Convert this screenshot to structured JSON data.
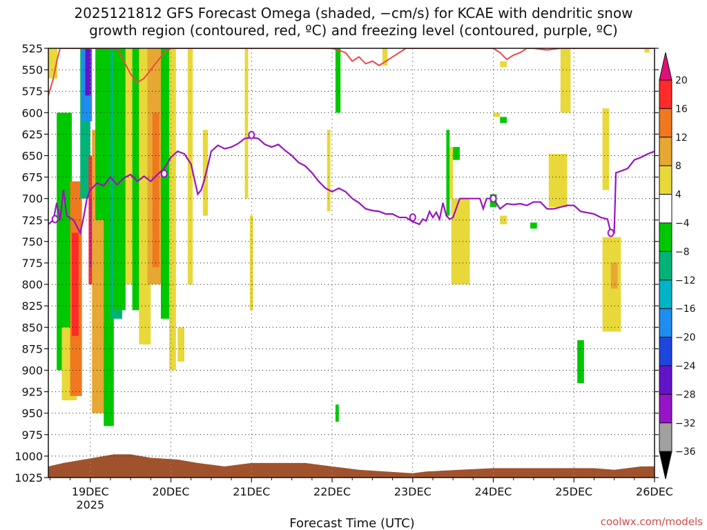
{
  "chart_data": {
    "type": "heatmap",
    "title_line1": "2025121812 GFS Forecast Omega (shaded, −cm/s) for KCAE with dendritic snow",
    "title_line2": "growth region (contoured, red, ºC) and freezing level (contoured, purple, ºC)",
    "xlabel": "Forecast Time (UTC)",
    "credit": "coolwx.com/models",
    "x_range_hours": [
      -12.5,
      168
    ],
    "y_levels": [
      "525",
      "550",
      "575",
      "600",
      "625",
      "650",
      "675",
      "700",
      "725",
      "750",
      "775",
      "800",
      "825",
      "850",
      "875",
      "900",
      "925",
      "950",
      "975",
      "1000",
      "1025"
    ],
    "x_ticks": [
      {
        "hour": 0,
        "label": "19DEC"
      },
      {
        "hour": 24,
        "label": "20DEC"
      },
      {
        "hour": 48,
        "label": "21DEC"
      },
      {
        "hour": 72,
        "label": "22DEC"
      },
      {
        "hour": 96,
        "label": "23DEC"
      },
      {
        "hour": 120,
        "label": "24DEC"
      },
      {
        "hour": 144,
        "label": "25DEC"
      },
      {
        "hour": 168,
        "label": "26DEC"
      }
    ],
    "x_year_label": "2025",
    "colorbar": {
      "labels": [
        "20",
        "16",
        "12",
        "8",
        "4",
        "−4",
        "−8",
        "−12",
        "−16",
        "−20",
        "−24",
        "−28",
        "−32",
        "−36"
      ],
      "colors": [
        "#e0107a",
        "#ff2a2a",
        "#f0781e",
        "#e6a832",
        "#e8d83a",
        "#ffffff",
        "#00c800",
        "#00b478",
        "#00b4c8",
        "#1e8cf0",
        "#1e46dc",
        "#6414c8",
        "#9614c8",
        "#a0a0a0",
        "#000000"
      ]
    },
    "shaded_regions": [
      {
        "t0": -12.5,
        "t1": -9.8,
        "p0": 525,
        "p1": 560,
        "color": "#e8d83a"
      },
      {
        "t0": -10.0,
        "t1": -5.5,
        "p0": 600,
        "p1": 900,
        "color": "#00c800"
      },
      {
        "t0": -8.5,
        "t1": -4.0,
        "p0": 850,
        "p1": 935,
        "color": "#e8d83a"
      },
      {
        "t0": -6.0,
        "t1": -2.5,
        "p0": 680,
        "p1": 930,
        "color": "#f0781e"
      },
      {
        "t0": -5.5,
        "t1": -3.5,
        "p0": 740,
        "p1": 860,
        "color": "#ff2a2a"
      },
      {
        "t0": -3.0,
        "t1": 0.0,
        "p0": 525,
        "p1": 700,
        "color": "#00b478"
      },
      {
        "t0": -2.5,
        "t1": 0.5,
        "p0": 525,
        "p1": 610,
        "color": "#1e8cf0"
      },
      {
        "t0": -1.5,
        "t1": 0.2,
        "p0": 525,
        "p1": 580,
        "color": "#6414c8"
      },
      {
        "t0": -0.5,
        "t1": 3.5,
        "p0": 650,
        "p1": 800,
        "color": "#ff2a2a"
      },
      {
        "t0": -0.3,
        "t1": 0.7,
        "p0": 700,
        "p1": 780,
        "color": "#e0107a"
      },
      {
        "t0": 0.5,
        "t1": 4.5,
        "p0": 620,
        "p1": 950,
        "color": "#e6a832"
      },
      {
        "t0": 4.0,
        "t1": 7.0,
        "p0": 700,
        "p1": 965,
        "color": "#00c800"
      },
      {
        "t0": 1.5,
        "t1": 6.0,
        "p0": 525,
        "p1": 725,
        "color": "#00c800"
      },
      {
        "t0": 6.0,
        "t1": 9.5,
        "p0": 525,
        "p1": 840,
        "color": "#00b478"
      },
      {
        "t0": 7.0,
        "t1": 10.5,
        "p0": 525,
        "p1": 830,
        "color": "#00c800"
      },
      {
        "t0": 10.5,
        "t1": 12.5,
        "p0": 525,
        "p1": 800,
        "color": "#e8d83a"
      },
      {
        "t0": 12.5,
        "t1": 15.0,
        "p0": 525,
        "p1": 830,
        "color": "#00c800"
      },
      {
        "t0": 14.5,
        "t1": 18.0,
        "p0": 525,
        "p1": 870,
        "color": "#e8d83a"
      },
      {
        "t0": 17.0,
        "t1": 21.0,
        "p0": 525,
        "p1": 800,
        "color": "#e6a832"
      },
      {
        "t0": 18.5,
        "t1": 20.5,
        "p0": 600,
        "p1": 780,
        "color": "#f0781e"
      },
      {
        "t0": 21.0,
        "t1": 24.0,
        "p0": 525,
        "p1": 840,
        "color": "#00c800"
      },
      {
        "t0": 23.5,
        "t1": 25.5,
        "p0": 525,
        "p1": 900,
        "color": "#e8d83a"
      },
      {
        "t0": 26.0,
        "t1": 28.0,
        "p0": 850,
        "p1": 890,
        "color": "#e8d83a"
      },
      {
        "t0": 29.0,
        "t1": 30.5,
        "p0": 525,
        "p1": 800,
        "color": "#e8d83a"
      },
      {
        "t0": 33.5,
        "t1": 35.0,
        "p0": 620,
        "p1": 720,
        "color": "#e8d83a"
      },
      {
        "t0": 46.0,
        "t1": 47.0,
        "p0": 525,
        "p1": 700,
        "color": "#e8d83a"
      },
      {
        "t0": 47.5,
        "t1": 48.5,
        "p0": 720,
        "p1": 830,
        "color": "#e8d83a"
      },
      {
        "t0": 70.5,
        "t1": 71.5,
        "p0": 620,
        "p1": 715,
        "color": "#e8d83a"
      },
      {
        "t0": 73.0,
        "t1": 74.5,
        "p0": 525,
        "p1": 600,
        "color": "#00c800"
      },
      {
        "t0": 73.0,
        "t1": 74.0,
        "p0": 940,
        "p1": 960,
        "color": "#00c800"
      },
      {
        "t0": 87.0,
        "t1": 88.5,
        "p0": 525,
        "p1": 545,
        "color": "#e8d83a"
      },
      {
        "t0": 106.0,
        "t1": 107.0,
        "p0": 620,
        "p1": 720,
        "color": "#00c800"
      },
      {
        "t0": 107.0,
        "t1": 108.0,
        "p0": 640,
        "p1": 700,
        "color": "#e8d83a"
      },
      {
        "t0": 108.0,
        "t1": 110.0,
        "p0": 640,
        "p1": 655,
        "color": "#00c800"
      },
      {
        "t0": 107.5,
        "t1": 113.0,
        "p0": 700,
        "p1": 800,
        "color": "#e8d83a"
      },
      {
        "t0": 120.0,
        "t1": 122.0,
        "p0": 600,
        "p1": 605,
        "color": "#e8d83a"
      },
      {
        "t0": 119.0,
        "t1": 121.0,
        "p0": 695,
        "p1": 710,
        "color": "#00c800"
      },
      {
        "t0": 122.0,
        "t1": 124.0,
        "p0": 605,
        "p1": 612,
        "color": "#00c800"
      },
      {
        "t0": 122.0,
        "t1": 124.0,
        "p0": 540,
        "p1": 547,
        "color": "#e8d83a"
      },
      {
        "t0": 122.0,
        "t1": 124.0,
        "p0": 720,
        "p1": 730,
        "color": "#e8d83a"
      },
      {
        "t0": 131.0,
        "t1": 133.0,
        "p0": 728,
        "p1": 735,
        "color": "#00c800"
      },
      {
        "t0": 136.5,
        "t1": 142.0,
        "p0": 648,
        "p1": 710,
        "color": "#e8d83a"
      },
      {
        "t0": 140.0,
        "t1": 143.0,
        "p0": 525,
        "p1": 600,
        "color": "#e8d83a"
      },
      {
        "t0": 145.0,
        "t1": 147.0,
        "p0": 865,
        "p1": 915,
        "color": "#00c800"
      },
      {
        "t0": 152.5,
        "t1": 154.5,
        "p0": 595,
        "p1": 690,
        "color": "#e8d83a"
      },
      {
        "t0": 152.5,
        "t1": 158.0,
        "p0": 745,
        "p1": 855,
        "color": "#e8d83a"
      },
      {
        "t0": 155.0,
        "t1": 157.0,
        "p0": 775,
        "p1": 805,
        "color": "#e6a832"
      },
      {
        "t0": 165.0,
        "t1": 166.5,
        "p0": 525,
        "p1": 530,
        "color": "#e8d83a"
      }
    ],
    "terrain": {
      "color": "#a0522d",
      "points": [
        [
          -12.5,
          1012
        ],
        [
          -8,
          1008
        ],
        [
          -2,
          1004
        ],
        [
          4,
          1000
        ],
        [
          7,
          998
        ],
        [
          12,
          998
        ],
        [
          18,
          1002
        ],
        [
          26,
          1004
        ],
        [
          32,
          1008
        ],
        [
          40,
          1012
        ],
        [
          48,
          1008
        ],
        [
          56,
          1008
        ],
        [
          64,
          1008
        ],
        [
          72,
          1012
        ],
        [
          80,
          1016
        ],
        [
          88,
          1018
        ],
        [
          96,
          1020
        ],
        [
          100,
          1018
        ],
        [
          110,
          1016
        ],
        [
          120,
          1014
        ],
        [
          130,
          1014
        ],
        [
          140,
          1014
        ],
        [
          150,
          1014
        ],
        [
          156,
          1016
        ],
        [
          164,
          1012
        ],
        [
          168,
          1012
        ]
      ]
    },
    "freezing_level": {
      "color": "#9a12c0",
      "label": "0",
      "points": [
        [
          -12.5,
          730
        ],
        [
          -11,
          725
        ],
        [
          -10,
          705
        ],
        [
          -9,
          725
        ],
        [
          -8,
          690
        ],
        [
          -7,
          720
        ],
        [
          -5,
          725
        ],
        [
          -3,
          740
        ],
        [
          -2,
          722
        ],
        [
          -1,
          700
        ],
        [
          0,
          690
        ],
        [
          2,
          682
        ],
        [
          4,
          685
        ],
        [
          6,
          675
        ],
        [
          8,
          684
        ],
        [
          10,
          676
        ],
        [
          12,
          672
        ],
        [
          14,
          680
        ],
        [
          16,
          674
        ],
        [
          18,
          680
        ],
        [
          20,
          672
        ],
        [
          22,
          665
        ],
        [
          24,
          652
        ],
        [
          26,
          645
        ],
        [
          28,
          648
        ],
        [
          30,
          660
        ],
        [
          32,
          695
        ],
        [
          33,
          690
        ],
        [
          34,
          678
        ],
        [
          36,
          645
        ],
        [
          38,
          638
        ],
        [
          40,
          642
        ],
        [
          42,
          640
        ],
        [
          44,
          636
        ],
        [
          46,
          630
        ],
        [
          48,
          629
        ],
        [
          50,
          630
        ],
        [
          52,
          637
        ],
        [
          54,
          640
        ],
        [
          56,
          637
        ],
        [
          58,
          644
        ],
        [
          60,
          650
        ],
        [
          62,
          658
        ],
        [
          64,
          662
        ],
        [
          66,
          670
        ],
        [
          68,
          680
        ],
        [
          70,
          688
        ],
        [
          72,
          692
        ],
        [
          74,
          688
        ],
        [
          76,
          692
        ],
        [
          78,
          700
        ],
        [
          80,
          705
        ],
        [
          82,
          712
        ],
        [
          84,
          714
        ],
        [
          86,
          715
        ],
        [
          88,
          718
        ],
        [
          90,
          718
        ],
        [
          92,
          722
        ],
        [
          94,
          722
        ],
        [
          96,
          727
        ],
        [
          98,
          730
        ],
        [
          99,
          724
        ],
        [
          100,
          726
        ],
        [
          101,
          715
        ],
        [
          102,
          722
        ],
        [
          103,
          716
        ],
        [
          104,
          724
        ],
        [
          105,
          705
        ],
        [
          106,
          720
        ],
        [
          107,
          724
        ],
        [
          108,
          722
        ],
        [
          110,
          700
        ],
        [
          116,
          700
        ],
        [
          117,
          712
        ],
        [
          118,
          700
        ],
        [
          120,
          700
        ],
        [
          122,
          712
        ],
        [
          124,
          706
        ],
        [
          126,
          707
        ],
        [
          128,
          706
        ],
        [
          130,
          708
        ],
        [
          132,
          704
        ],
        [
          134,
          704
        ],
        [
          136,
          712
        ],
        [
          138,
          712
        ],
        [
          140,
          710
        ],
        [
          142,
          708
        ],
        [
          144,
          708
        ],
        [
          146,
          715
        ],
        [
          150,
          718
        ],
        [
          152,
          722
        ],
        [
          154,
          724
        ],
        [
          155,
          740
        ],
        [
          156,
          740
        ],
        [
          156.5,
          670
        ],
        [
          158,
          668
        ],
        [
          160,
          665
        ],
        [
          162,
          655
        ],
        [
          164,
          652
        ],
        [
          166,
          648
        ],
        [
          168,
          645
        ]
      ]
    },
    "dgz_contour": {
      "color": "#f04545",
      "points": [
        [
          -12.5,
          580
        ],
        [
          -11,
          560
        ],
        [
          -10,
          540
        ],
        [
          -9,
          525
        ],
        [
          0,
          525
        ],
        [
          8,
          525
        ],
        [
          10,
          540
        ],
        [
          12,
          555
        ],
        [
          14,
          565
        ],
        [
          16,
          560
        ],
        [
          18,
          550
        ],
        [
          20,
          540
        ],
        [
          22,
          530
        ],
        [
          24,
          525
        ],
        [
          72,
          525
        ],
        [
          76,
          530
        ],
        [
          78,
          540
        ],
        [
          80,
          535
        ],
        [
          82,
          543
        ],
        [
          84,
          540
        ],
        [
          86,
          545
        ],
        [
          88,
          540
        ],
        [
          90,
          535
        ],
        [
          92,
          530
        ],
        [
          94,
          525
        ],
        [
          120,
          525
        ],
        [
          122,
          530
        ],
        [
          124,
          538
        ],
        [
          126,
          533
        ],
        [
          128,
          530
        ],
        [
          130,
          525
        ],
        [
          132,
          525
        ],
        [
          136,
          527
        ],
        [
          140,
          525
        ],
        [
          168,
          525
        ]
      ]
    }
  }
}
